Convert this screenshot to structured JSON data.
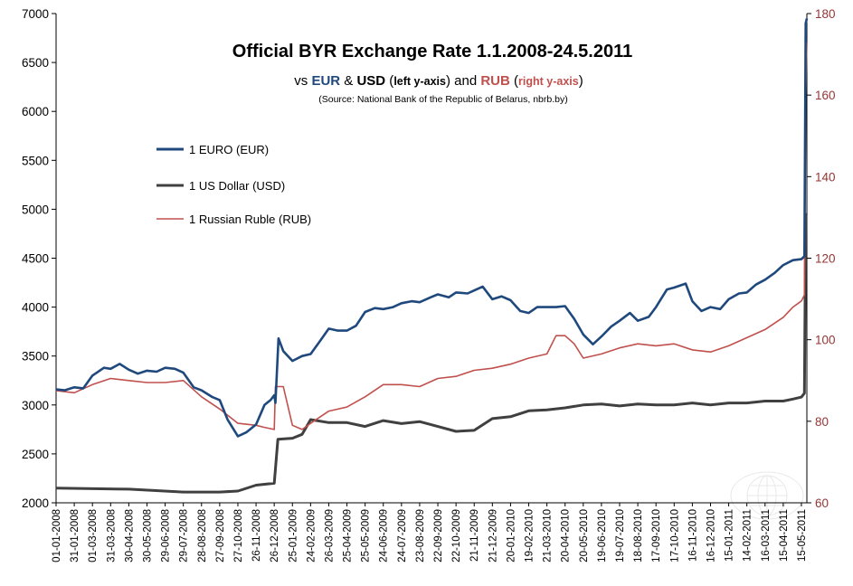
{
  "chart_data": {
    "type": "line",
    "title": "Official BYR Exchange Rate 1.1.2008-24.5.2011",
    "subtitle_parts": [
      {
        "text": "vs ",
        "weight": "normal",
        "color": "#000000",
        "size": "normal"
      },
      {
        "text": "EUR",
        "weight": "bold",
        "color": "#1f497d",
        "size": "normal"
      },
      {
        "text": " & ",
        "weight": "normal",
        "color": "#000000",
        "size": "normal"
      },
      {
        "text": "USD",
        "weight": "bold",
        "color": "#000000",
        "size": "normal"
      },
      {
        "text": " (",
        "weight": "normal",
        "color": "#000000",
        "size": "normal"
      },
      {
        "text": "left y-axis",
        "weight": "bold",
        "color": "#000000",
        "size": "small"
      },
      {
        "text": ") and ",
        "weight": "normal",
        "color": "#000000",
        "size": "normal"
      },
      {
        "text": "RUB",
        "weight": "bold",
        "color": "#c0504d",
        "size": "normal"
      },
      {
        "text": " (",
        "weight": "normal",
        "color": "#000000",
        "size": "normal"
      },
      {
        "text": "right y-axis",
        "weight": "bold",
        "color": "#c0504d",
        "size": "small"
      },
      {
        "text": ")",
        "weight": "normal",
        "color": "#000000",
        "size": "normal"
      }
    ],
    "source": "(Source: National Bank of the Republic of Belarus,  nbrb.by)",
    "x_tick_labels": [
      "01-01-2008",
      "31-01-2008",
      "01-03-2008",
      "31-03-2008",
      "30-04-2008",
      "30-05-2008",
      "29-06-2008",
      "29-07-2008",
      "28-08-2008",
      "27-09-2008",
      "27-10-2008",
      "26-11-2008",
      "26-12-2008",
      "25-01-2009",
      "24-02-2009",
      "26-03-2009",
      "25-04-2009",
      "25-05-2009",
      "24-06-2009",
      "24-07-2009",
      "23-08-2009",
      "22-09-2009",
      "22-10-2009",
      "21-11-2009",
      "21-12-2009",
      "20-01-2010",
      "19-02-2010",
      "21-03-2010",
      "20-04-2010",
      "20-05-2010",
      "19-06-2010",
      "19-07-2010",
      "18-08-2010",
      "17-09-2010",
      "17-10-2010",
      "16-11-2010",
      "16-12-2010",
      "15-01-2011",
      "14-02-2011",
      "16-03-2011",
      "15-04-2011",
      "15-05-2011"
    ],
    "y_left": {
      "min": 2000,
      "max": 7000,
      "ticks": [
        "2000",
        "2500",
        "3000",
        "3500",
        "4000",
        "4500",
        "5000",
        "5500",
        "6000",
        "6500",
        "7000"
      ]
    },
    "y_right": {
      "min": 60,
      "max": 180,
      "ticks": [
        "60",
        "80",
        "100",
        "120",
        "140",
        "160",
        "180"
      ]
    },
    "grid": false,
    "legend_position": "upper-left",
    "series": [
      {
        "name": "1 EURO (EUR)",
        "axis": "left",
        "color": "#1f497d",
        "points": [
          [
            "01-01-2008",
            3160
          ],
          [
            "15-01-2008",
            3150
          ],
          [
            "31-01-2008",
            3180
          ],
          [
            "15-02-2008",
            3170
          ],
          [
            "01-03-2008",
            3300
          ],
          [
            "20-03-2008",
            3380
          ],
          [
            "31-03-2008",
            3370
          ],
          [
            "15-04-2008",
            3420
          ],
          [
            "30-04-2008",
            3360
          ],
          [
            "15-05-2008",
            3320
          ],
          [
            "30-05-2008",
            3350
          ],
          [
            "15-06-2008",
            3340
          ],
          [
            "29-06-2008",
            3380
          ],
          [
            "15-07-2008",
            3370
          ],
          [
            "29-07-2008",
            3330
          ],
          [
            "15-08-2008",
            3180
          ],
          [
            "28-08-2008",
            3150
          ],
          [
            "15-09-2008",
            3080
          ],
          [
            "27-09-2008",
            3050
          ],
          [
            "10-10-2008",
            2850
          ],
          [
            "27-10-2008",
            2680
          ],
          [
            "10-11-2008",
            2720
          ],
          [
            "26-11-2008",
            2800
          ],
          [
            "10-12-2008",
            3000
          ],
          [
            "20-12-2008",
            3050
          ],
          [
            "26-12-2008",
            3100
          ],
          [
            "28-12-2008",
            3020
          ],
          [
            "02-01-2009",
            3680
          ],
          [
            "10-01-2009",
            3550
          ],
          [
            "25-01-2009",
            3450
          ],
          [
            "10-02-2009",
            3500
          ],
          [
            "24-02-2009",
            3520
          ],
          [
            "10-03-2009",
            3640
          ],
          [
            "26-03-2009",
            3780
          ],
          [
            "10-04-2009",
            3760
          ],
          [
            "25-04-2009",
            3760
          ],
          [
            "10-05-2009",
            3810
          ],
          [
            "25-05-2009",
            3950
          ],
          [
            "10-06-2009",
            3990
          ],
          [
            "24-06-2009",
            3980
          ],
          [
            "10-07-2009",
            4000
          ],
          [
            "24-07-2009",
            4040
          ],
          [
            "10-08-2009",
            4060
          ],
          [
            "23-08-2009",
            4050
          ],
          [
            "10-09-2009",
            4100
          ],
          [
            "22-09-2009",
            4130
          ],
          [
            "10-10-2009",
            4100
          ],
          [
            "22-10-2009",
            4150
          ],
          [
            "10-11-2009",
            4140
          ],
          [
            "21-11-2009",
            4170
          ],
          [
            "05-12-2009",
            4210
          ],
          [
            "21-12-2009",
            4080
          ],
          [
            "05-01-2010",
            4110
          ],
          [
            "20-01-2010",
            4070
          ],
          [
            "05-02-2010",
            3960
          ],
          [
            "19-02-2010",
            3940
          ],
          [
            "05-03-2010",
            4000
          ],
          [
            "21-03-2010",
            4000
          ],
          [
            "05-04-2010",
            4000
          ],
          [
            "20-04-2010",
            4010
          ],
          [
            "05-05-2010",
            3880
          ],
          [
            "20-05-2010",
            3720
          ],
          [
            "05-06-2010",
            3620
          ],
          [
            "19-06-2010",
            3700
          ],
          [
            "05-07-2010",
            3800
          ],
          [
            "19-07-2010",
            3860
          ],
          [
            "05-08-2010",
            3940
          ],
          [
            "18-08-2010",
            3860
          ],
          [
            "05-09-2010",
            3900
          ],
          [
            "17-09-2010",
            4000
          ],
          [
            "05-10-2010",
            4180
          ],
          [
            "17-10-2010",
            4200
          ],
          [
            "05-11-2010",
            4240
          ],
          [
            "16-11-2010",
            4060
          ],
          [
            "01-12-2010",
            3960
          ],
          [
            "16-12-2010",
            4000
          ],
          [
            "01-01-2011",
            3980
          ],
          [
            "15-01-2011",
            4080
          ],
          [
            "01-02-2011",
            4140
          ],
          [
            "14-02-2011",
            4150
          ],
          [
            "01-03-2011",
            4230
          ],
          [
            "16-03-2011",
            4280
          ],
          [
            "01-04-2011",
            4350
          ],
          [
            "15-04-2011",
            4430
          ],
          [
            "01-05-2011",
            4480
          ],
          [
            "15-05-2011",
            4490
          ],
          [
            "20-05-2011",
            4520
          ],
          [
            "22-05-2011",
            6900
          ],
          [
            "24-05-2011",
            6950
          ]
        ]
      },
      {
        "name": "1 US Dollar (USD)",
        "axis": "left",
        "color": "#404040",
        "points": [
          [
            "01-01-2008",
            2150
          ],
          [
            "30-04-2008",
            2140
          ],
          [
            "29-07-2008",
            2110
          ],
          [
            "27-09-2008",
            2110
          ],
          [
            "27-10-2008",
            2120
          ],
          [
            "26-11-2008",
            2180
          ],
          [
            "26-12-2008",
            2200
          ],
          [
            "01-01-2009",
            2650
          ],
          [
            "25-01-2009",
            2660
          ],
          [
            "10-02-2009",
            2700
          ],
          [
            "24-02-2009",
            2850
          ],
          [
            "26-03-2009",
            2820
          ],
          [
            "25-04-2009",
            2820
          ],
          [
            "25-05-2009",
            2780
          ],
          [
            "24-06-2009",
            2840
          ],
          [
            "24-07-2009",
            2810
          ],
          [
            "23-08-2009",
            2830
          ],
          [
            "22-09-2009",
            2780
          ],
          [
            "22-10-2009",
            2730
          ],
          [
            "21-11-2009",
            2740
          ],
          [
            "21-12-2009",
            2860
          ],
          [
            "20-01-2010",
            2880
          ],
          [
            "19-02-2010",
            2940
          ],
          [
            "21-03-2010",
            2950
          ],
          [
            "20-04-2010",
            2970
          ],
          [
            "20-05-2010",
            3000
          ],
          [
            "19-06-2010",
            3010
          ],
          [
            "19-07-2010",
            2990
          ],
          [
            "18-08-2010",
            3010
          ],
          [
            "17-09-2010",
            3000
          ],
          [
            "17-10-2010",
            3000
          ],
          [
            "16-11-2010",
            3020
          ],
          [
            "16-12-2010",
            3000
          ],
          [
            "15-01-2011",
            3020
          ],
          [
            "14-02-2011",
            3020
          ],
          [
            "16-03-2011",
            3040
          ],
          [
            "15-04-2011",
            3040
          ],
          [
            "01-05-2011",
            3060
          ],
          [
            "15-05-2011",
            3080
          ],
          [
            "20-05-2011",
            3120
          ],
          [
            "22-05-2011",
            4940
          ],
          [
            "24-05-2011",
            4950
          ]
        ]
      },
      {
        "name": "1 Russian Ruble (RUB)",
        "axis": "right",
        "color": "#c0504d",
        "points": [
          [
            "01-01-2008",
            87.5
          ],
          [
            "31-01-2008",
            87.0
          ],
          [
            "01-03-2008",
            89.0
          ],
          [
            "31-03-2008",
            90.5
          ],
          [
            "30-04-2008",
            90.0
          ],
          [
            "30-05-2008",
            89.5
          ],
          [
            "29-06-2008",
            89.5
          ],
          [
            "29-07-2008",
            90.0
          ],
          [
            "28-08-2008",
            86.0
          ],
          [
            "27-09-2008",
            83.0
          ],
          [
            "27-10-2008",
            79.5
          ],
          [
            "26-11-2008",
            79.0
          ],
          [
            "10-12-2008",
            78.5
          ],
          [
            "26-12-2008",
            78.0
          ],
          [
            "28-12-2008",
            88.5
          ],
          [
            "10-01-2009",
            88.5
          ],
          [
            "25-01-2009",
            79.0
          ],
          [
            "10-02-2009",
            78.0
          ],
          [
            "24-02-2009",
            79.5
          ],
          [
            "26-03-2009",
            82.5
          ],
          [
            "25-04-2009",
            83.5
          ],
          [
            "25-05-2009",
            86.0
          ],
          [
            "24-06-2009",
            89.0
          ],
          [
            "24-07-2009",
            89.0
          ],
          [
            "23-08-2009",
            88.5
          ],
          [
            "22-09-2009",
            90.5
          ],
          [
            "22-10-2009",
            91.0
          ],
          [
            "21-11-2009",
            92.5
          ],
          [
            "21-12-2009",
            93.0
          ],
          [
            "20-01-2010",
            94.0
          ],
          [
            "19-02-2010",
            95.5
          ],
          [
            "21-03-2010",
            96.5
          ],
          [
            "05-04-2010",
            101.0
          ],
          [
            "20-04-2010",
            101.0
          ],
          [
            "05-05-2010",
            99.0
          ],
          [
            "20-05-2010",
            95.5
          ],
          [
            "19-06-2010",
            96.5
          ],
          [
            "19-07-2010",
            98.0
          ],
          [
            "18-08-2010",
            99.0
          ],
          [
            "17-09-2010",
            98.5
          ],
          [
            "17-10-2010",
            99.0
          ],
          [
            "16-11-2010",
            97.5
          ],
          [
            "16-12-2010",
            97.0
          ],
          [
            "15-01-2011",
            98.5
          ],
          [
            "14-02-2011",
            100.5
          ],
          [
            "16-03-2011",
            102.5
          ],
          [
            "15-04-2011",
            105.5
          ],
          [
            "01-05-2011",
            108.0
          ],
          [
            "15-05-2011",
            109.5
          ],
          [
            "20-05-2011",
            111.0
          ],
          [
            "22-05-2011",
            160.0
          ],
          [
            "24-05-2011",
            173.0
          ]
        ]
      }
    ]
  }
}
